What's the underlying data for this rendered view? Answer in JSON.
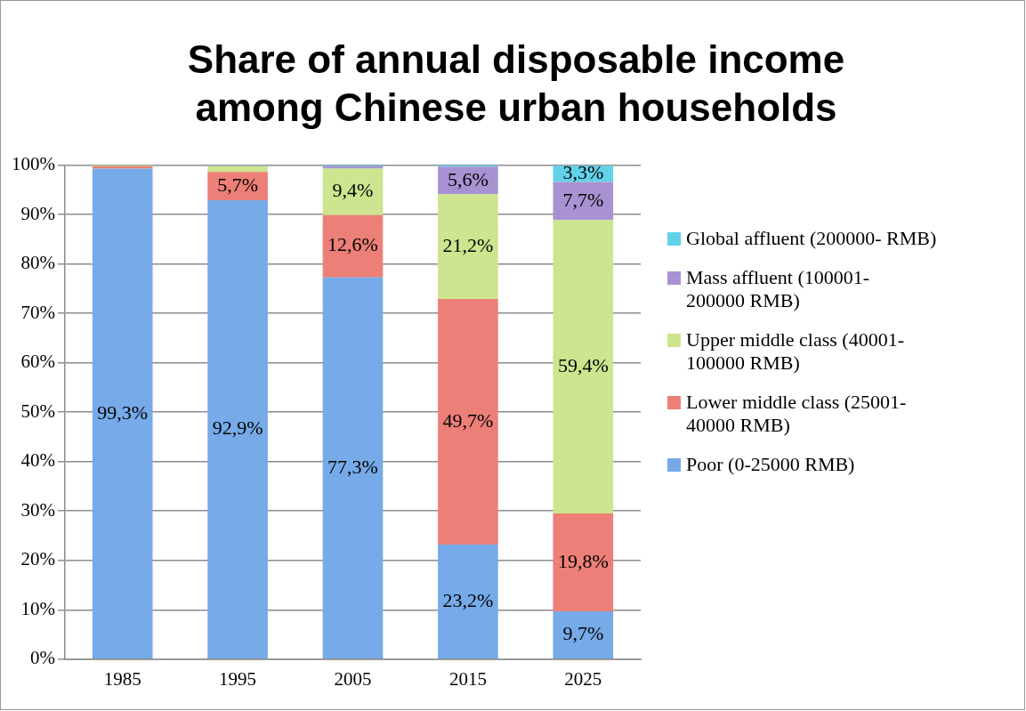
{
  "chart_data": {
    "type": "bar",
    "title": "Share of annual disposable income among Chinese urban households",
    "categories": [
      "1985",
      "1995",
      "2005",
      "2015",
      "2025"
    ],
    "stacked": true,
    "series": [
      {
        "name": "Poor (0-25000 RMB)",
        "color": "#76aae8",
        "values": [
          99.3,
          92.9,
          77.3,
          23.2,
          9.7
        ],
        "value_labels": [
          "99,3%",
          "92,9%",
          "77,3%",
          "23,2%",
          "9,7%"
        ]
      },
      {
        "name": "Lower middle class (25001-40000 RMB)",
        "color": "#ec7f78",
        "values": [
          0.5,
          5.7,
          12.6,
          49.7,
          19.8
        ],
        "value_labels": [
          null,
          "5,7%",
          "12,6%",
          "49,7%",
          "19,8%"
        ]
      },
      {
        "name": "Upper middle class (40001-100000 RMB)",
        "color": "#cce58e",
        "values": [
          0.2,
          1.2,
          9.4,
          21.2,
          59.4
        ],
        "value_labels": [
          null,
          null,
          "9,4%",
          "21,2%",
          "59,4%"
        ]
      },
      {
        "name": "Mass affluent (100001-200000 RMB)",
        "color": "#a892d2",
        "values": [
          0,
          0.1,
          0.5,
          5.6,
          7.7
        ],
        "value_labels": [
          null,
          null,
          null,
          "5,6%",
          "7,7%"
        ]
      },
      {
        "name": "Global affluent (200000- RMB)",
        "color": "#62d2ea",
        "values": [
          0,
          0.1,
          0.2,
          0.3,
          3.3
        ],
        "value_labels": [
          null,
          null,
          null,
          null,
          "3,3%"
        ]
      }
    ],
    "ylim": [
      0,
      100
    ],
    "yticks": [
      {
        "value": 0,
        "label": "0%"
      },
      {
        "value": 10,
        "label": "10%"
      },
      {
        "value": 20,
        "label": "20%"
      },
      {
        "value": 30,
        "label": "30%"
      },
      {
        "value": 40,
        "label": "40%"
      },
      {
        "value": 50,
        "label": "50%"
      },
      {
        "value": 60,
        "label": "60%"
      },
      {
        "value": 70,
        "label": "70%"
      },
      {
        "value": 80,
        "label": "80%"
      },
      {
        "value": 90,
        "label": "90%"
      },
      {
        "value": 100,
        "label": "100%"
      }
    ],
    "grid": "y",
    "legend": "right"
  }
}
